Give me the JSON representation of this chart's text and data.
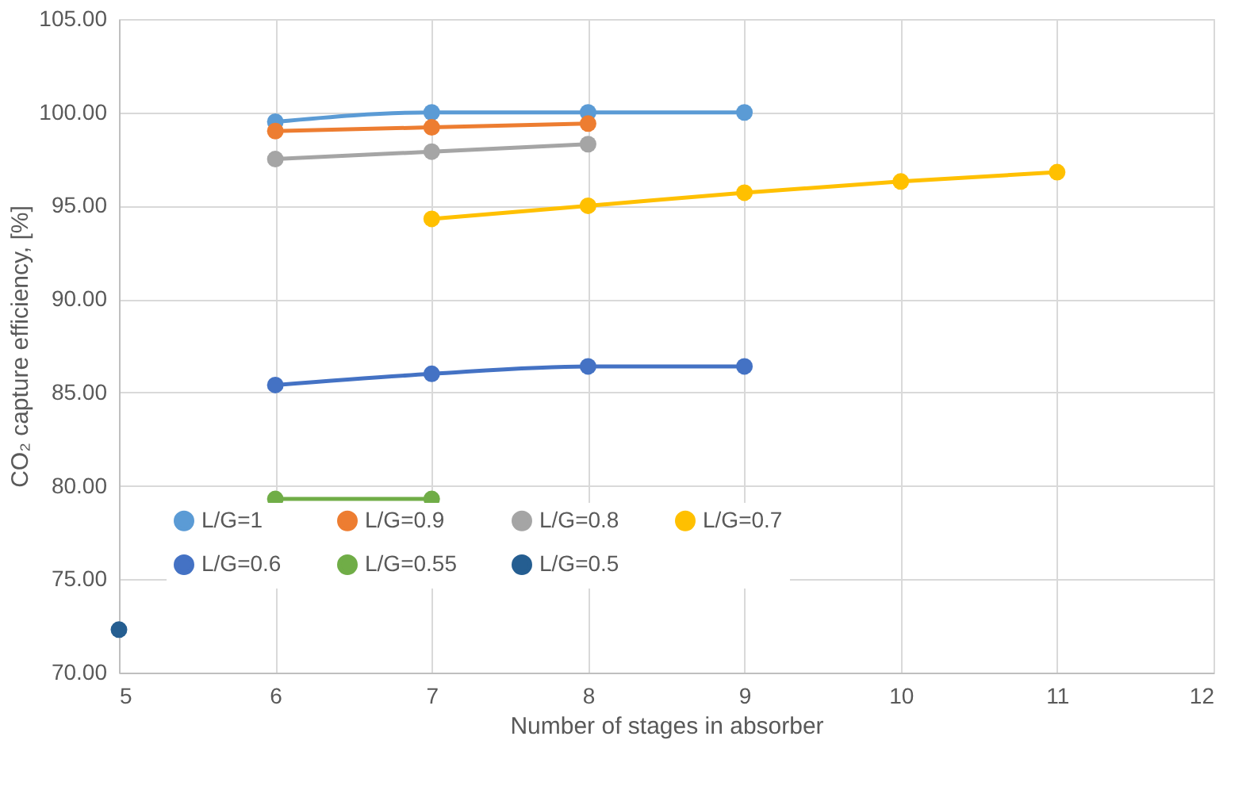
{
  "chart_data": {
    "type": "line",
    "xlabel": "Number of stages in absorber",
    "ylabel": "CO₂ capture efficiency, [%]",
    "xlim": [
      5,
      12
    ],
    "xticks": [
      5,
      6,
      7,
      8,
      9,
      10,
      11,
      12
    ],
    "ylim": [
      70,
      105
    ],
    "yticks": [
      {
        "value": 70,
        "label": "70.00"
      },
      {
        "value": 75,
        "label": "75.00"
      },
      {
        "value": 80,
        "label": "80.00"
      },
      {
        "value": 85,
        "label": "85.00"
      },
      {
        "value": 90,
        "label": "90.00"
      },
      {
        "value": 95,
        "label": "95.00"
      },
      {
        "value": 100,
        "label": "100.00"
      },
      {
        "value": 105,
        "label": "105.00"
      }
    ],
    "grid": true,
    "legend": "bottom",
    "marker": "circle",
    "line_style": "solid",
    "series": [
      {
        "name": "L/G=1",
        "color": "#5b9bd5",
        "x": [
          6,
          7,
          8,
          9
        ],
        "values": [
          99.5,
          100.0,
          100.0,
          100.0
        ]
      },
      {
        "name": "L/G=0.9",
        "color": "#ed7d31",
        "x": [
          6,
          7,
          8
        ],
        "values": [
          99.0,
          99.2,
          99.4
        ]
      },
      {
        "name": "L/G=0.8",
        "color": "#a5a5a5",
        "x": [
          6,
          7,
          8
        ],
        "values": [
          97.5,
          97.9,
          98.3
        ]
      },
      {
        "name": "L/G=0.7",
        "color": "#ffc000",
        "x": [
          7,
          8,
          9,
          10,
          11
        ],
        "values": [
          94.3,
          95.0,
          95.7,
          96.3,
          96.8
        ]
      },
      {
        "name": "L/G=0.6",
        "color": "#4472c4",
        "x": [
          6,
          7,
          8,
          9
        ],
        "values": [
          85.4,
          86.0,
          86.4,
          86.4
        ]
      },
      {
        "name": "L/G=0.55",
        "color": "#70ad47",
        "x": [
          6,
          7
        ],
        "values": [
          79.3,
          79.3
        ]
      },
      {
        "name": "L/G=0.5",
        "color": "#255e91",
        "x": [
          5
        ],
        "values": [
          72.3
        ]
      }
    ]
  }
}
